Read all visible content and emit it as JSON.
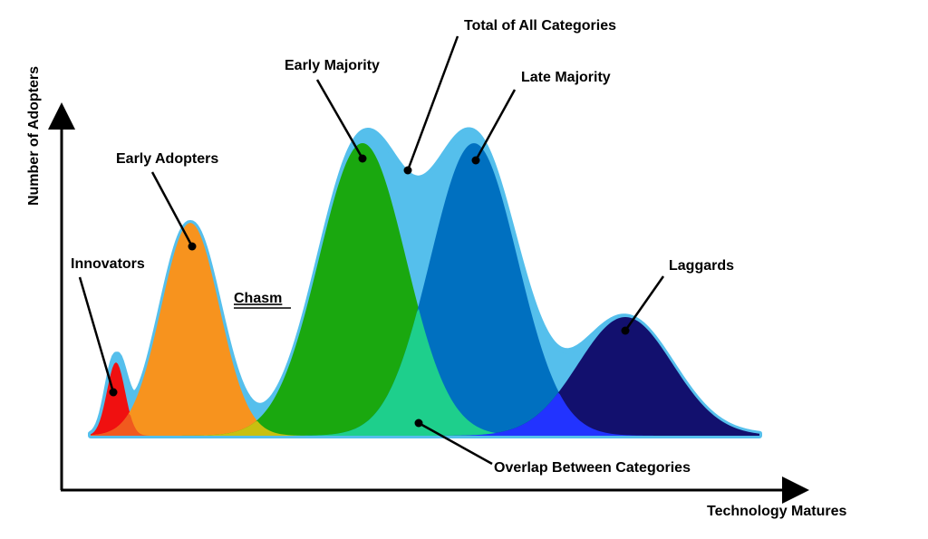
{
  "axes": {
    "y_label": "Number of Adopters",
    "x_label": "Technology Matures"
  },
  "labels": {
    "total": "Total of All Categories",
    "early_majority": "Early Majority",
    "late_majority": "Late Majority",
    "early_adopters": "Early Adopters",
    "innovators": "Innovators",
    "chasm": "Chasm",
    "laggards": "Laggards",
    "overlap": "Overlap Between Categories"
  }
}
